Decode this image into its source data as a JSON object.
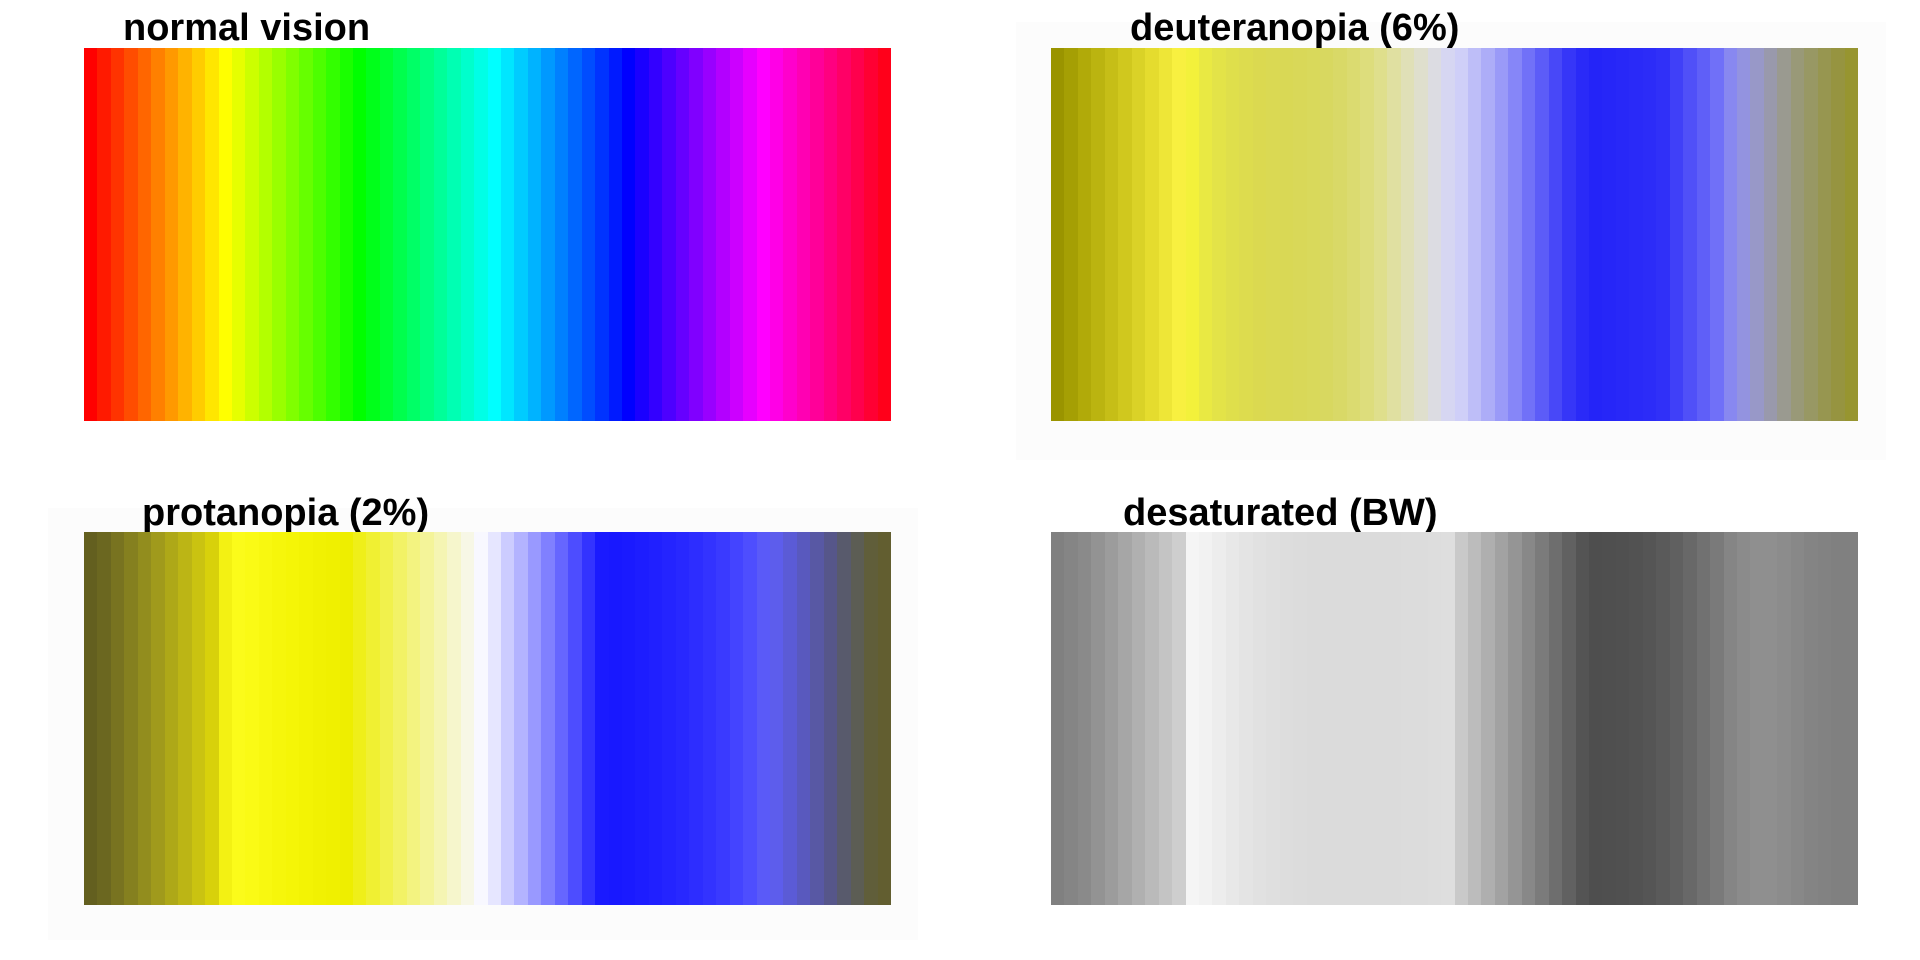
{
  "chart_data": [
    {
      "type": "heatmap",
      "title": "normal vision",
      "colors": [
        "#ff0000",
        "#ff1a00",
        "#ff3300",
        "#ff4d00",
        "#ff6600",
        "#ff8000",
        "#ff9900",
        "#ffb300",
        "#ffcc00",
        "#ffe600",
        "#ffff00",
        "#e6ff00",
        "#ccff00",
        "#b3ff00",
        "#99ff00",
        "#80ff00",
        "#66ff00",
        "#4dff00",
        "#33ff00",
        "#1aff00",
        "#00ff00",
        "#00ff1a",
        "#00ff33",
        "#00ff4d",
        "#00ff66",
        "#00ff80",
        "#00ff99",
        "#00ffb3",
        "#00ffcc",
        "#00ffe6",
        "#00ffff",
        "#00e6ff",
        "#00ccff",
        "#00b3ff",
        "#0099ff",
        "#0080ff",
        "#0066ff",
        "#004dff",
        "#0033ff",
        "#001aff",
        "#0000ff",
        "#1a00ff",
        "#3300ff",
        "#4d00ff",
        "#6600ff",
        "#8000ff",
        "#9900ff",
        "#b300ff",
        "#cc00ff",
        "#e600ff",
        "#ff00ff",
        "#ff00e6",
        "#ff00cc",
        "#ff00b3",
        "#ff0099",
        "#ff0080",
        "#ff0066",
        "#ff004d",
        "#ff0033",
        "#ff001a"
      ]
    },
    {
      "type": "heatmap",
      "title": "deuteranopia (6%)",
      "colors": [
        "#9a9400",
        "#a59f04",
        "#b1aa09",
        "#bbb410",
        "#c6be17",
        "#d0c81e",
        "#dad227",
        "#e5dc2e",
        "#eee637",
        "#f8f040",
        "#f3f13b",
        "#e9e943",
        "#e3e348",
        "#dfdf4b",
        "#dddc4e",
        "#dbd950",
        "#dad953",
        "#d9d855",
        "#d9d858",
        "#d9d95b",
        "#d8d860",
        "#d9d967",
        "#dbdb70",
        "#dddd7c",
        "#dfdf8c",
        "#e0e0a1",
        "#e0e0b7",
        "#dfdfcd",
        "#dcdce2",
        "#d6d6f2",
        "#cfcff8",
        "#bebef8",
        "#adadf8",
        "#9a9af8",
        "#8686f8",
        "#7171f8",
        "#5c5cf8",
        "#4848f8",
        "#3636f8",
        "#2a2af8",
        "#2424f8",
        "#2626f8",
        "#2828f8",
        "#2a2af8",
        "#2c2cf8",
        "#3030f8",
        "#4040f8",
        "#5050f8",
        "#5f5ff8",
        "#7070f8",
        "#8888f0",
        "#9393e0",
        "#9898c8",
        "#9999ac",
        "#9a9a90",
        "#999978",
        "#989864",
        "#979650",
        "#969440",
        "#979530"
      ]
    },
    {
      "type": "heatmap",
      "title": "protanopia (2%)",
      "colors": [
        "#635f1f",
        "#6b6720",
        "#787320",
        "#85801f",
        "#928d1e",
        "#a09a1c",
        "#aea818",
        "#bcb515",
        "#cac311",
        "#d8d10b",
        "#f3f113",
        "#fbfb1a",
        "#fafa15",
        "#f8f810",
        "#f6f60b",
        "#f5f507",
        "#f3f304",
        "#f1f102",
        "#f0f000",
        "#eeee00",
        "#efef19",
        "#f0f032",
        "#f1f14c",
        "#f2f266",
        "#f3f380",
        "#f4f499",
        "#f5f5b3",
        "#f6f6cc",
        "#f7f7e6",
        "#f8f8ff",
        "#e6e6ff",
        "#ccccff",
        "#b3b3ff",
        "#9999ff",
        "#8080ff",
        "#6666ff",
        "#4d4dff",
        "#3333ff",
        "#1a1aff",
        "#1818ff",
        "#1a1aff",
        "#1d1dff",
        "#2020ff",
        "#2424ff",
        "#2828ff",
        "#2d2dff",
        "#3333ff",
        "#3a3aff",
        "#4444ff",
        "#4e4efe",
        "#5a5af8",
        "#5d5dec",
        "#5b5bd6",
        "#5959be",
        "#5858a4",
        "#56568a",
        "#585a6c",
        "#5c5d54",
        "#605e3a",
        "#625e30"
      ]
    },
    {
      "type": "heatmap",
      "title": "desaturated (BW)",
      "colors": [
        "#808080",
        "#858585",
        "#8a8a8a",
        "#939393",
        "#9c9c9c",
        "#a6a6a6",
        "#b0b0b0",
        "#bababa",
        "#c4c4c4",
        "#cecece",
        "#f5f5f5",
        "#f2f2f2",
        "#ededed",
        "#e8e8e8",
        "#e4e4e4",
        "#e1e1e1",
        "#dfdfdf",
        "#dddddd",
        "#dcdcdc",
        "#dbdbdb",
        "#dbdbdb",
        "#dbdbdb",
        "#dbdbdb",
        "#dbdbdb",
        "#dbdbdb",
        "#dbdbdb",
        "#dcdcdc",
        "#dcdcdc",
        "#dddddd",
        "#dedede",
        "#c9c9c9",
        "#bcbcbc",
        "#afafaf",
        "#a2a2a2",
        "#959595",
        "#888888",
        "#7b7b7b",
        "#6e6e6e",
        "#616161",
        "#545454",
        "#4e4e4e",
        "#4f4f4f",
        "#505050",
        "#525252",
        "#555555",
        "#5a5a5a",
        "#606060",
        "#686868",
        "#717171",
        "#7a7a7a",
        "#858585",
        "#8b8b8b",
        "#8f8f8f",
        "#8f8f8f",
        "#8c8c8c",
        "#888888",
        "#848484",
        "#828282",
        "#808080",
        "#808080"
      ]
    }
  ]
}
